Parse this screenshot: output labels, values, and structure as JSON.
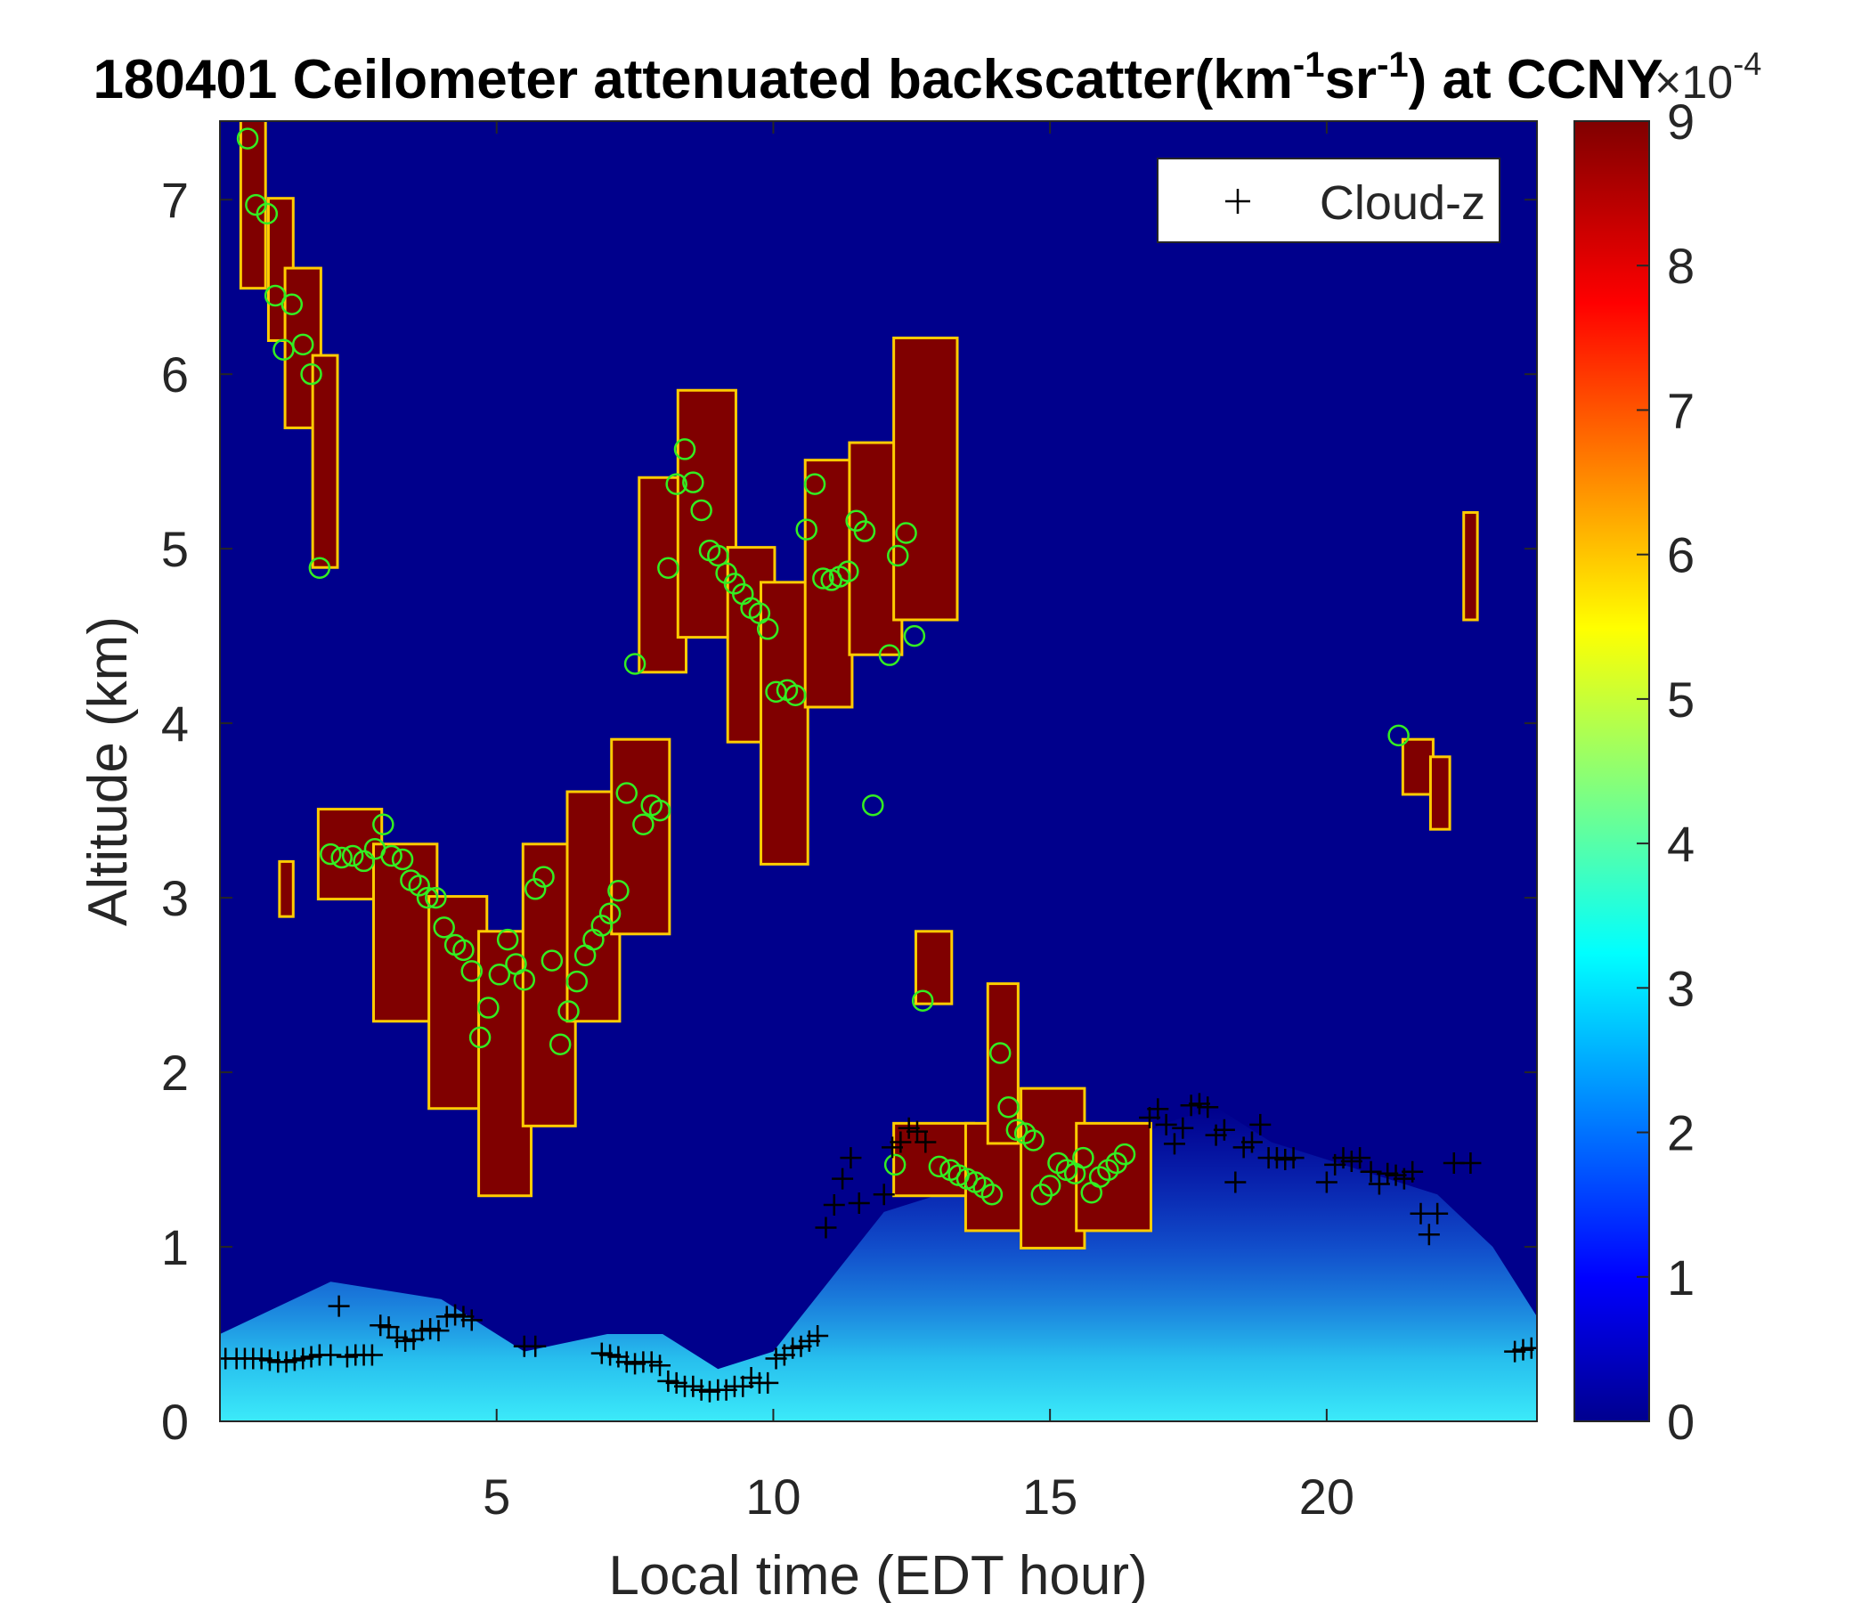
{
  "chart_data": {
    "type": "heatmap",
    "title": {
      "prefix": "180401 Ceilometer attenuated backscatter(km",
      "sup1": "-1",
      "mid": "sr",
      "sup2": "-1",
      "suffix": ") at CCNY"
    },
    "xlabel": "Local time (EDT hour)",
    "ylabel": "Altitude (km)",
    "xlim": [
      0,
      23.8
    ],
    "ylim": [
      0,
      7.45
    ],
    "xticks": [
      5,
      10,
      15,
      20
    ],
    "yticks": [
      0,
      1,
      2,
      3,
      4,
      5,
      6,
      7
    ],
    "colorbar": {
      "ticks": [
        0,
        1,
        2,
        3,
        4,
        5,
        6,
        7,
        8,
        9
      ],
      "range": [
        0,
        9
      ],
      "exponent_label": "×10",
      "exponent": "-4",
      "colormap": "jet"
    },
    "legend": {
      "entries": [
        "Cloud-z"
      ],
      "placement": "top-right"
    },
    "background_aerosol": [
      [
        0,
        0.5
      ],
      [
        2,
        0.8
      ],
      [
        4,
        0.7
      ],
      [
        5.5,
        0.4
      ],
      [
        7,
        0.5
      ],
      [
        8,
        0.5
      ],
      [
        9,
        0.3
      ],
      [
        10,
        0.4
      ],
      [
        11,
        0.8
      ],
      [
        12,
        1.2
      ],
      [
        13,
        1.3
      ],
      [
        14,
        1.4
      ],
      [
        15,
        1.4
      ],
      [
        16,
        1.5
      ],
      [
        17,
        1.7
      ],
      [
        18,
        1.8
      ],
      [
        19,
        1.6
      ],
      [
        20,
        1.5
      ],
      [
        21,
        1.4
      ],
      [
        22,
        1.3
      ],
      [
        23,
        1.0
      ],
      [
        23.8,
        0.6
      ]
    ],
    "cloud_layers": [
      {
        "x0": 0.4,
        "x1": 0.8,
        "y0": 6.5,
        "y1": 7.45
      },
      {
        "x0": 0.9,
        "x1": 1.3,
        "y0": 6.2,
        "y1": 7.0
      },
      {
        "x0": 1.2,
        "x1": 1.8,
        "y0": 5.7,
        "y1": 6.6
      },
      {
        "x0": 1.7,
        "x1": 2.1,
        "y0": 4.9,
        "y1": 6.1
      },
      {
        "x0": 1.1,
        "x1": 1.3,
        "y0": 2.9,
        "y1": 3.2
      },
      {
        "x0": 1.8,
        "x1": 2.9,
        "y0": 3.0,
        "y1": 3.5
      },
      {
        "x0": 2.8,
        "x1": 3.9,
        "y0": 2.3,
        "y1": 3.3
      },
      {
        "x0": 3.8,
        "x1": 4.8,
        "y0": 1.8,
        "y1": 3.0
      },
      {
        "x0": 4.7,
        "x1": 5.6,
        "y0": 1.3,
        "y1": 2.8
      },
      {
        "x0": 5.5,
        "x1": 6.4,
        "y0": 1.7,
        "y1": 3.3
      },
      {
        "x0": 6.3,
        "x1": 7.2,
        "y0": 2.3,
        "y1": 3.6
      },
      {
        "x0": 7.1,
        "x1": 8.1,
        "y0": 2.8,
        "y1": 3.9
      },
      {
        "x0": 7.6,
        "x1": 8.4,
        "y0": 4.3,
        "y1": 5.4
      },
      {
        "x0": 8.3,
        "x1": 9.3,
        "y0": 4.5,
        "y1": 5.9
      },
      {
        "x0": 9.2,
        "x1": 10.0,
        "y0": 3.9,
        "y1": 5.0
      },
      {
        "x0": 9.8,
        "x1": 10.6,
        "y0": 3.2,
        "y1": 4.8
      },
      {
        "x0": 10.6,
        "x1": 11.4,
        "y0": 4.1,
        "y1": 5.5
      },
      {
        "x0": 11.4,
        "x1": 12.3,
        "y0": 4.4,
        "y1": 5.6
      },
      {
        "x0": 12.2,
        "x1": 13.3,
        "y0": 4.6,
        "y1": 6.2
      },
      {
        "x0": 12.6,
        "x1": 13.2,
        "y0": 2.4,
        "y1": 2.8
      },
      {
        "x0": 12.2,
        "x1": 13.6,
        "y0": 1.3,
        "y1": 1.7
      },
      {
        "x0": 13.5,
        "x1": 14.6,
        "y0": 1.1,
        "y1": 1.7
      },
      {
        "x0": 13.9,
        "x1": 14.4,
        "y0": 1.6,
        "y1": 2.5
      },
      {
        "x0": 14.5,
        "x1": 15.6,
        "y0": 1.0,
        "y1": 1.9
      },
      {
        "x0": 15.5,
        "x1": 16.8,
        "y0": 1.1,
        "y1": 1.7
      },
      {
        "x0": 21.4,
        "x1": 21.9,
        "y0": 3.6,
        "y1": 3.9
      },
      {
        "x0": 21.9,
        "x1": 22.2,
        "y0": 3.4,
        "y1": 3.8
      },
      {
        "x0": 22.5,
        "x1": 22.7,
        "y0": 4.6,
        "y1": 5.2
      }
    ],
    "green_markers": [
      [
        0.5,
        7.35
      ],
      [
        0.65,
        6.97
      ],
      [
        0.85,
        6.92
      ],
      [
        1.0,
        6.45
      ],
      [
        1.15,
        6.14
      ],
      [
        1.3,
        6.4
      ],
      [
        1.5,
        6.17
      ],
      [
        1.65,
        6.0
      ],
      [
        1.8,
        4.89
      ],
      [
        2.0,
        3.25
      ],
      [
        2.2,
        3.23
      ],
      [
        2.4,
        3.24
      ],
      [
        2.6,
        3.21
      ],
      [
        2.8,
        3.28
      ],
      [
        2.95,
        3.42
      ],
      [
        3.1,
        3.24
      ],
      [
        3.3,
        3.22
      ],
      [
        3.45,
        3.1
      ],
      [
        3.6,
        3.07
      ],
      [
        3.75,
        3.0
      ],
      [
        3.9,
        3.0
      ],
      [
        4.05,
        2.83
      ],
      [
        4.25,
        2.73
      ],
      [
        4.4,
        2.7
      ],
      [
        4.55,
        2.58
      ],
      [
        4.7,
        2.2
      ],
      [
        4.85,
        2.37
      ],
      [
        5.05,
        2.56
      ],
      [
        5.2,
        2.76
      ],
      [
        5.35,
        2.62
      ],
      [
        5.5,
        2.53
      ],
      [
        5.7,
        3.05
      ],
      [
        5.85,
        3.12
      ],
      [
        6.0,
        2.64
      ],
      [
        6.15,
        2.16
      ],
      [
        6.3,
        2.35
      ],
      [
        6.45,
        2.52
      ],
      [
        6.6,
        2.67
      ],
      [
        6.75,
        2.76
      ],
      [
        6.9,
        2.84
      ],
      [
        7.05,
        2.91
      ],
      [
        7.2,
        3.04
      ],
      [
        7.35,
        3.6
      ],
      [
        7.5,
        4.34
      ],
      [
        7.65,
        3.42
      ],
      [
        7.8,
        3.53
      ],
      [
        7.95,
        3.5
      ],
      [
        8.1,
        4.89
      ],
      [
        8.25,
        5.37
      ],
      [
        8.4,
        5.57
      ],
      [
        8.55,
        5.38
      ],
      [
        8.7,
        5.22
      ],
      [
        8.85,
        4.99
      ],
      [
        9.0,
        4.96
      ],
      [
        9.15,
        4.86
      ],
      [
        9.3,
        4.8
      ],
      [
        9.45,
        4.74
      ],
      [
        9.6,
        4.66
      ],
      [
        9.75,
        4.63
      ],
      [
        9.9,
        4.54
      ],
      [
        10.05,
        4.18
      ],
      [
        10.25,
        4.19
      ],
      [
        10.4,
        4.16
      ],
      [
        10.6,
        5.11
      ],
      [
        10.75,
        5.37
      ],
      [
        10.9,
        4.83
      ],
      [
        11.05,
        4.82
      ],
      [
        11.2,
        4.84
      ],
      [
        11.35,
        4.87
      ],
      [
        11.5,
        5.16
      ],
      [
        11.65,
        5.1
      ],
      [
        11.8,
        3.53
      ],
      [
        12.1,
        4.39
      ],
      [
        12.25,
        4.96
      ],
      [
        12.4,
        5.09
      ],
      [
        12.55,
        4.5
      ],
      [
        12.7,
        2.41
      ],
      [
        12.2,
        1.47
      ],
      [
        13.0,
        1.46
      ],
      [
        13.2,
        1.44
      ],
      [
        13.35,
        1.41
      ],
      [
        13.5,
        1.39
      ],
      [
        13.65,
        1.37
      ],
      [
        13.8,
        1.34
      ],
      [
        13.95,
        1.3
      ],
      [
        14.1,
        2.11
      ],
      [
        14.25,
        1.8
      ],
      [
        14.4,
        1.67
      ],
      [
        14.55,
        1.65
      ],
      [
        14.7,
        1.61
      ],
      [
        14.85,
        1.3
      ],
      [
        15.0,
        1.35
      ],
      [
        15.15,
        1.48
      ],
      [
        15.3,
        1.44
      ],
      [
        15.45,
        1.42
      ],
      [
        15.6,
        1.51
      ],
      [
        15.75,
        1.31
      ],
      [
        15.9,
        1.4
      ],
      [
        16.05,
        1.44
      ],
      [
        16.2,
        1.48
      ],
      [
        16.35,
        1.53
      ],
      [
        21.3,
        3.93
      ]
    ],
    "series": [
      {
        "name": "Cloud-z",
        "points": [
          [
            0.1,
            0.36
          ],
          [
            0.3,
            0.36
          ],
          [
            0.45,
            0.36
          ],
          [
            0.6,
            0.36
          ],
          [
            0.75,
            0.36
          ],
          [
            0.9,
            0.35
          ],
          [
            1.05,
            0.34
          ],
          [
            1.2,
            0.34
          ],
          [
            1.35,
            0.35
          ],
          [
            1.5,
            0.36
          ],
          [
            1.65,
            0.37
          ],
          [
            1.8,
            0.38
          ],
          [
            2.0,
            0.38
          ],
          [
            2.15,
            0.66
          ],
          [
            2.3,
            0.37
          ],
          [
            2.45,
            0.38
          ],
          [
            2.6,
            0.38
          ],
          [
            2.75,
            0.38
          ],
          [
            2.9,
            0.55
          ],
          [
            3.05,
            0.54
          ],
          [
            3.2,
            0.48
          ],
          [
            3.35,
            0.46
          ],
          [
            3.5,
            0.47
          ],
          [
            3.65,
            0.52
          ],
          [
            3.8,
            0.53
          ],
          [
            3.95,
            0.52
          ],
          [
            4.1,
            0.6
          ],
          [
            4.25,
            0.61
          ],
          [
            4.4,
            0.6
          ],
          [
            4.55,
            0.58
          ],
          [
            5.5,
            0.43
          ],
          [
            5.7,
            0.43
          ],
          [
            6.9,
            0.39
          ],
          [
            7.05,
            0.38
          ],
          [
            7.2,
            0.37
          ],
          [
            7.35,
            0.34
          ],
          [
            7.5,
            0.33
          ],
          [
            7.65,
            0.34
          ],
          [
            7.8,
            0.34
          ],
          [
            7.95,
            0.32
          ],
          [
            8.1,
            0.23
          ],
          [
            8.25,
            0.22
          ],
          [
            8.4,
            0.2
          ],
          [
            8.55,
            0.2
          ],
          [
            8.7,
            0.18
          ],
          [
            8.85,
            0.17
          ],
          [
            9.0,
            0.18
          ],
          [
            9.15,
            0.18
          ],
          [
            9.3,
            0.2
          ],
          [
            9.45,
            0.2
          ],
          [
            9.6,
            0.25
          ],
          [
            9.75,
            0.22
          ],
          [
            9.9,
            0.22
          ],
          [
            10.05,
            0.36
          ],
          [
            10.2,
            0.38
          ],
          [
            10.35,
            0.42
          ],
          [
            10.5,
            0.43
          ],
          [
            10.65,
            0.46
          ],
          [
            10.8,
            0.49
          ],
          [
            10.95,
            1.11
          ],
          [
            11.1,
            1.24
          ],
          [
            11.25,
            1.39
          ],
          [
            11.4,
            1.51
          ],
          [
            11.55,
            1.25
          ],
          [
            12.0,
            1.3
          ],
          [
            12.15,
            1.57
          ],
          [
            12.3,
            1.6
          ],
          [
            12.45,
            1.68
          ],
          [
            12.6,
            1.66
          ],
          [
            12.75,
            1.6
          ],
          [
            16.8,
            1.74
          ],
          [
            16.95,
            1.79
          ],
          [
            17.1,
            1.7
          ],
          [
            17.25,
            1.59
          ],
          [
            17.4,
            1.68
          ],
          [
            17.55,
            1.81
          ],
          [
            17.7,
            1.82
          ],
          [
            17.85,
            1.8
          ],
          [
            18.0,
            1.64
          ],
          [
            18.15,
            1.67
          ],
          [
            18.35,
            1.37
          ],
          [
            18.5,
            1.57
          ],
          [
            18.65,
            1.6
          ],
          [
            18.8,
            1.7
          ],
          [
            18.95,
            1.51
          ],
          [
            19.1,
            1.51
          ],
          [
            19.25,
            1.5
          ],
          [
            19.4,
            1.51
          ],
          [
            20.0,
            1.37
          ],
          [
            20.15,
            1.47
          ],
          [
            20.3,
            1.51
          ],
          [
            20.45,
            1.49
          ],
          [
            20.6,
            1.51
          ],
          [
            20.8,
            1.43
          ],
          [
            20.95,
            1.36
          ],
          [
            21.1,
            1.42
          ],
          [
            21.25,
            1.41
          ],
          [
            21.4,
            1.39
          ],
          [
            21.55,
            1.43
          ],
          [
            21.7,
            1.19
          ],
          [
            21.85,
            1.07
          ],
          [
            22.0,
            1.19
          ],
          [
            22.3,
            1.48
          ],
          [
            22.6,
            1.48
          ],
          [
            23.4,
            0.4
          ],
          [
            23.55,
            0.41
          ],
          [
            23.7,
            0.42
          ]
        ]
      }
    ]
  }
}
